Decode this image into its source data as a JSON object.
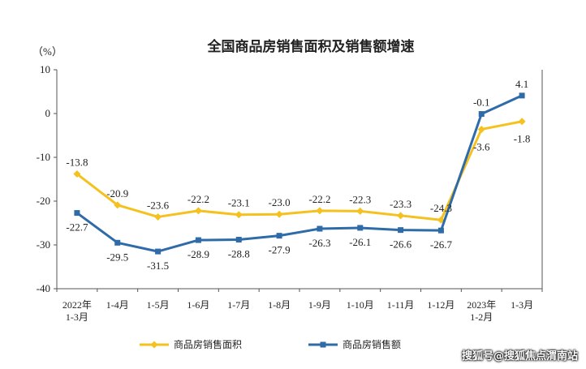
{
  "chart_data": {
    "type": "line",
    "title": "全国商品房销售面积及销售额增速",
    "ylabel": "（%）",
    "ylim": [
      -40,
      10
    ],
    "yticks": [
      10,
      0,
      -10,
      -20,
      -30,
      -40
    ],
    "grid": false,
    "legend_position": "bottom",
    "categories": [
      [
        "2022年",
        "1-3月"
      ],
      [
        "1-4月"
      ],
      [
        "1-5月"
      ],
      [
        "1-6月"
      ],
      [
        "1-7月"
      ],
      [
        "1-8月"
      ],
      [
        "1-9月"
      ],
      [
        "1-10月"
      ],
      [
        "1-11月"
      ],
      [
        "1-12月"
      ],
      [
        "2023年",
        "1-2月"
      ],
      [
        "1-3月"
      ]
    ],
    "series": [
      {
        "name": "商品房销售面积",
        "color": "#F5C11E",
        "marker": "diamond",
        "values": [
          -13.8,
          -20.9,
          -23.6,
          -22.2,
          -23.1,
          -23.0,
          -22.2,
          -22.3,
          -23.3,
          -24.3,
          -3.6,
          -1.8
        ],
        "labels": [
          "-13.8",
          "-20.9",
          "-23.6",
          "-22.2",
          "-23.1",
          "-23.0",
          "-22.2",
          "-22.3",
          "-23.3",
          "-24.3",
          "-3.6",
          "-1.8"
        ]
      },
      {
        "name": "商品房销售额",
        "color": "#2E6BA8",
        "marker": "square",
        "values": [
          -22.7,
          -29.5,
          -31.5,
          -28.9,
          -28.8,
          -27.9,
          -26.3,
          -26.1,
          -26.6,
          -26.7,
          -0.1,
          4.1
        ],
        "labels": [
          "-22.7",
          "-29.5",
          "-31.5",
          "-28.9",
          "-28.8",
          "-27.9",
          "-26.3",
          "-26.1",
          "-26.6",
          "-26.7",
          "-0.1",
          "4.1"
        ]
      }
    ]
  },
  "watermark": "搜狐号@搜狐焦点渭南站"
}
